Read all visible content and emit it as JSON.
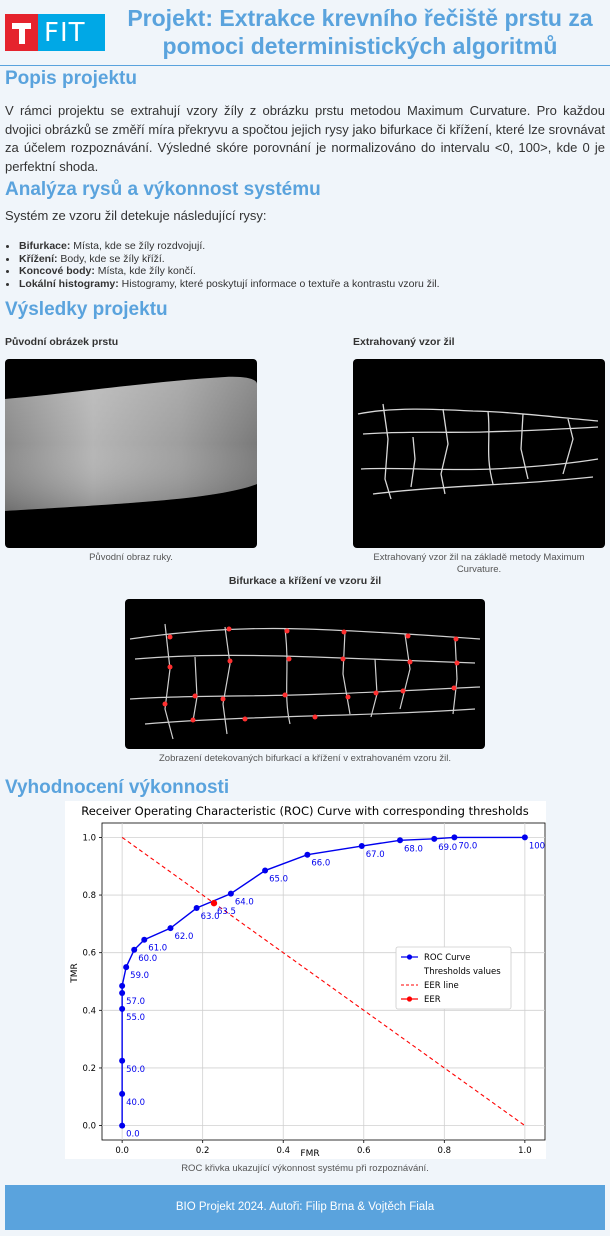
{
  "header": {
    "logo_text": "FIT",
    "title_line1": "Projekt: Extrakce krevního řečiště prstu za",
    "title_line2": "pomoci deterministických algoritmů"
  },
  "sections": {
    "popis_title": "Popis projektu",
    "popis_text": "V rámci projektu se extrahují vzory žíly z obrázku prstu metodou Maximum Curvature. Pro každou dvojici obrázků se změří míra překryvu a spočtou jejich rysy jako bifurkace či křížení, které lze srovnávat za účelem rozpoznávání. Výsledné skóre porovnání je normalizováno do intervalu <0, 100>, kde 0 je perfektní shoda.",
    "analyza_title": "Analýza rysů a výkonnost systému",
    "analyza_intro": "Systém ze vzoru žil detekuje následující rysy:",
    "features": [
      {
        "name": "Bifurkace:",
        "desc": " Místa, kde se žíly rozdvojují."
      },
      {
        "name": "Křížení:",
        "desc": " Body, kde se žíly kříží."
      },
      {
        "name": "Koncové body:",
        "desc": " Místa, kde žíly končí."
      },
      {
        "name": "Lokální histogramy:",
        "desc": " Histogramy, které poskytují informace o textuře a kontrastu vzoru žil."
      }
    ],
    "vysledky_title": "Výsledky projektu",
    "img1_label": "Původní obrázek prstu",
    "img1_caption": "Původní obraz ruky.",
    "img2_label": "Extrahovaný vzor žil",
    "img2_caption": "Extrahovaný vzor žil na základě metody Maximum Curvature.",
    "img3_label": "Bifurkace a křížení ve vzoru žil",
    "img3_caption": "Zobrazení detekovaných bifurkací a křížení v extrahovaném vzoru žil.",
    "vyhodnoceni_title": "Vyhodnocení výkonnosti",
    "chart_caption": "ROC křivka ukazující výkonnost systému při rozpoznávání."
  },
  "footer": {
    "text": "BIO Projekt 2024. Autoři: Filip Brna & Vojtěch Fiala"
  },
  "colors": {
    "accent": "#5aa3dd",
    "roc": "#0000ee",
    "eer": "#ff0000"
  },
  "chart_data": {
    "type": "line",
    "title": "Receiver Operating Characteristic (ROC) Curve with corresponding thresholds",
    "xlabel": "FMR",
    "ylabel": "TMR",
    "xlim": [
      -0.05,
      1.05
    ],
    "ylim": [
      -0.05,
      1.05
    ],
    "xticks": [
      "0.0",
      "0.2",
      "0.4",
      "0.6",
      "0.8",
      "1.0"
    ],
    "yticks": [
      "0.0",
      "0.2",
      "0.4",
      "0.6",
      "0.8",
      "1.0"
    ],
    "grid": true,
    "legend_placement": "center-right",
    "legend": [
      "ROC Curve",
      "Thresholds values",
      "EER line",
      "EER"
    ],
    "series": [
      {
        "name": "ROC Curve",
        "x": [
          0.0,
          0.0,
          0.0,
          0.0,
          0.0,
          0.0,
          0.01,
          0.03,
          0.055,
          0.12,
          0.185,
          0.27,
          0.355,
          0.46,
          0.595,
          0.69,
          0.775,
          0.825,
          1.0
        ],
        "y": [
          0.0,
          0.11,
          0.225,
          0.405,
          0.46,
          0.485,
          0.55,
          0.61,
          0.645,
          0.685,
          0.755,
          0.805,
          0.885,
          0.94,
          0.97,
          0.99,
          0.995,
          1.0,
          1.0
        ],
        "labels": [
          "0.0",
          "40.0",
          "50.0",
          "55.0",
          "57.0",
          "",
          "59.0",
          "60.0",
          "61.0",
          "62.0",
          "63.0",
          "64.0",
          "65.0",
          "66.0",
          "67.0",
          "68.0",
          "69.0",
          "70.0",
          "100.0"
        ]
      },
      {
        "name": "EER line",
        "x": [
          0.0,
          1.0
        ],
        "y": [
          1.0,
          0.0
        ]
      },
      {
        "name": "EER",
        "x": [
          0.228
        ],
        "y": [
          0.772
        ],
        "labels": [
          "63.5"
        ]
      }
    ]
  }
}
